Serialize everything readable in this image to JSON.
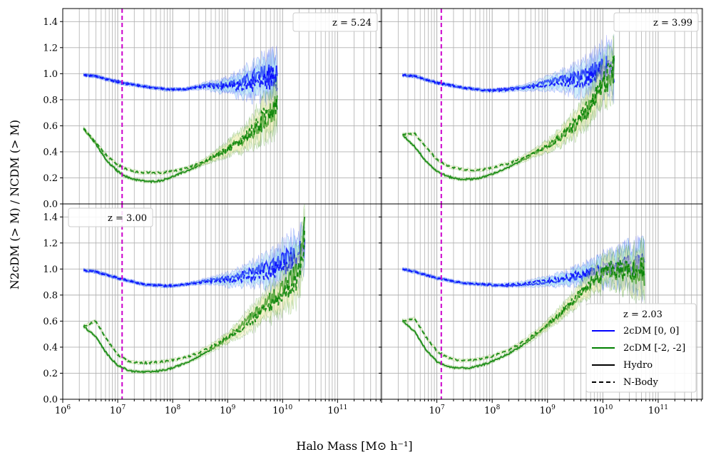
{
  "chart_data": {
    "type": "line",
    "xlabel": "Halo Mass [M⊙ h⁻¹]",
    "ylabel": "N2cDM (> M) / NCDM (> M)",
    "x_scale": "log",
    "xlim_exp": [
      6,
      11.8
    ],
    "ylim": [
      0,
      1.5
    ],
    "x_tick_exponents": [
      6,
      7,
      8,
      9,
      10,
      11
    ],
    "y_ticks": [
      "0.0",
      "0.2",
      "0.4",
      "0.6",
      "0.8",
      "1.0",
      "1.2",
      "1.4"
    ],
    "vline_exp": 7.08,
    "grid": true,
    "legend": {
      "entries": [
        {
          "label": "2cDM [0, 0]",
          "color": "#0000ff",
          "style": "solid"
        },
        {
          "label": "2cDM [-2, -2]",
          "color": "#008000",
          "style": "solid"
        },
        {
          "label": "Hydro",
          "color": "#000000",
          "style": "solid"
        },
        {
          "label": "N-Body",
          "color": "#000000",
          "style": "dashed"
        }
      ]
    },
    "colors": {
      "blue": "#0000ff",
      "green": "#008000",
      "vline": "#cc00cc",
      "blue_band": "#7fd0f0",
      "green_band": "#e8e79a"
    },
    "panels": [
      {
        "z_label": "z = 5.24",
        "x_range": [
          6.38,
          9.9
        ],
        "series": [
          {
            "name": "2cDM [0, 0]",
            "kind": "Hydro",
            "color": "blue",
            "dash": false,
            "x": [
              6.38,
              6.6,
              7.0,
              7.5,
              7.9,
              8.2,
              8.6,
              9.0,
              9.3,
              9.5,
              9.7,
              9.8,
              9.9
            ],
            "y": [
              0.99,
              0.98,
              0.94,
              0.9,
              0.88,
              0.88,
              0.91,
              0.92,
              0.94,
              0.97,
              0.99,
              1.02,
              0.96
            ]
          },
          {
            "name": "2cDM [0, 0]",
            "kind": "N-Body",
            "color": "blue",
            "dash": true,
            "x": [
              6.38,
              6.6,
              7.0,
              7.5,
              7.9,
              8.2,
              8.6,
              9.0,
              9.3,
              9.5,
              9.7,
              9.8,
              9.9
            ],
            "y": [
              0.99,
              0.98,
              0.93,
              0.9,
              0.88,
              0.88,
              0.9,
              0.9,
              0.91,
              0.93,
              0.95,
              0.98,
              0.95
            ]
          },
          {
            "name": "2cDM [-2, -2]",
            "kind": "Hydro",
            "color": "green",
            "dash": false,
            "x": [
              6.38,
              6.6,
              6.8,
              7.0,
              7.2,
              7.4,
              7.6,
              7.8,
              8.0,
              8.3,
              8.6,
              8.9,
              9.2,
              9.5,
              9.7,
              9.85
            ],
            "y": [
              0.58,
              0.46,
              0.33,
              0.25,
              0.2,
              0.18,
              0.17,
              0.18,
              0.21,
              0.26,
              0.32,
              0.4,
              0.47,
              0.56,
              0.65,
              0.74
            ]
          },
          {
            "name": "2cDM [-2, -2]",
            "kind": "N-Body",
            "color": "green",
            "dash": true,
            "x": [
              6.38,
              6.6,
              6.8,
              7.0,
              7.2,
              7.4,
              7.6,
              7.8,
              8.0,
              8.3,
              8.6,
              8.9,
              9.2,
              9.5,
              9.7,
              9.85
            ],
            "y": [
              0.58,
              0.47,
              0.37,
              0.3,
              0.26,
              0.24,
              0.24,
              0.24,
              0.25,
              0.28,
              0.33,
              0.4,
              0.47,
              0.58,
              0.68,
              0.78
            ]
          }
        ]
      },
      {
        "z_label": "z = 3.99",
        "x_range": [
          6.38,
          10.2
        ],
        "series": [
          {
            "name": "2cDM [0, 0]",
            "kind": "Hydro",
            "color": "blue",
            "dash": false,
            "x": [
              6.38,
              6.6,
              7.0,
              7.5,
              7.9,
              8.2,
              8.6,
              9.0,
              9.3,
              9.6,
              9.9,
              10.1,
              10.2
            ],
            "y": [
              0.99,
              0.98,
              0.93,
              0.89,
              0.87,
              0.88,
              0.9,
              0.93,
              0.96,
              0.98,
              1.02,
              1.05,
              1.03
            ]
          },
          {
            "name": "2cDM [0, 0]",
            "kind": "N-Body",
            "color": "blue",
            "dash": true,
            "x": [
              6.38,
              6.6,
              7.0,
              7.5,
              7.9,
              8.2,
              8.6,
              9.0,
              9.3,
              9.6,
              9.9,
              10.1,
              10.2
            ],
            "y": [
              0.99,
              0.98,
              0.93,
              0.89,
              0.87,
              0.87,
              0.89,
              0.91,
              0.93,
              0.95,
              0.99,
              1.02,
              1.01
            ]
          },
          {
            "name": "2cDM [-2, -2]",
            "kind": "Hydro",
            "color": "green",
            "dash": false,
            "x": [
              6.38,
              6.6,
              6.8,
              7.0,
              7.2,
              7.4,
              7.6,
              7.8,
              8.0,
              8.3,
              8.6,
              8.9,
              9.2,
              9.5,
              9.8,
              10.0,
              10.2
            ],
            "y": [
              0.53,
              0.44,
              0.33,
              0.25,
              0.21,
              0.19,
              0.19,
              0.2,
              0.23,
              0.28,
              0.35,
              0.42,
              0.5,
              0.6,
              0.75,
              0.9,
              1.04
            ]
          },
          {
            "name": "2cDM [-2, -2]",
            "kind": "N-Body",
            "color": "green",
            "dash": true,
            "x": [
              6.38,
              6.6,
              6.8,
              7.0,
              7.2,
              7.4,
              7.6,
              7.8,
              8.0,
              8.3,
              8.6,
              8.9,
              9.2,
              9.5,
              9.8,
              10.0,
              10.2
            ],
            "y": [
              0.53,
              0.54,
              0.44,
              0.34,
              0.29,
              0.27,
              0.26,
              0.26,
              0.28,
              0.31,
              0.36,
              0.42,
              0.5,
              0.62,
              0.78,
              0.93,
              1.05
            ]
          }
        ]
      },
      {
        "z_label": "z = 3.00",
        "x_range": [
          6.38,
          10.4
        ],
        "series": [
          {
            "name": "2cDM [0, 0]",
            "kind": "Hydro",
            "color": "blue",
            "dash": false,
            "x": [
              6.38,
              6.6,
              7.0,
              7.5,
              7.9,
              8.2,
              8.6,
              9.0,
              9.3,
              9.6,
              9.9,
              10.1,
              10.3,
              10.4
            ],
            "y": [
              0.99,
              0.98,
              0.93,
              0.88,
              0.87,
              0.88,
              0.91,
              0.93,
              0.96,
              1.0,
              1.04,
              1.08,
              1.1,
              1.2
            ]
          },
          {
            "name": "2cDM [0, 0]",
            "kind": "N-Body",
            "color": "blue",
            "dash": true,
            "x": [
              6.38,
              6.6,
              7.0,
              7.5,
              7.9,
              8.2,
              8.6,
              9.0,
              9.3,
              9.6,
              9.9,
              10.1,
              10.3,
              10.4
            ],
            "y": [
              0.99,
              0.98,
              0.93,
              0.88,
              0.87,
              0.88,
              0.9,
              0.91,
              0.93,
              0.96,
              1.0,
              1.05,
              1.08,
              1.15
            ]
          },
          {
            "name": "2cDM [-2, -2]",
            "kind": "Hydro",
            "color": "green",
            "dash": false,
            "x": [
              6.38,
              6.6,
              6.8,
              7.0,
              7.2,
              7.4,
              7.6,
              7.8,
              8.0,
              8.3,
              8.6,
              8.9,
              9.2,
              9.5,
              9.8,
              10.1,
              10.3,
              10.4
            ],
            "y": [
              0.56,
              0.48,
              0.35,
              0.26,
              0.22,
              0.21,
              0.21,
              0.22,
              0.24,
              0.29,
              0.36,
              0.44,
              0.55,
              0.66,
              0.78,
              0.9,
              0.98,
              1.3
            ]
          },
          {
            "name": "2cDM [-2, -2]",
            "kind": "N-Body",
            "color": "green",
            "dash": true,
            "x": [
              6.38,
              6.6,
              6.8,
              7.0,
              7.2,
              7.4,
              7.6,
              7.8,
              8.0,
              8.3,
              8.6,
              8.9,
              9.2,
              9.5,
              9.8,
              10.1,
              10.3,
              10.4
            ],
            "y": [
              0.56,
              0.6,
              0.46,
              0.34,
              0.29,
              0.28,
              0.28,
              0.29,
              0.3,
              0.33,
              0.38,
              0.45,
              0.53,
              0.62,
              0.73,
              0.85,
              0.95,
              1.25
            ]
          }
        ]
      },
      {
        "z_label": "z = 2.03",
        "x_range": [
          6.38,
          10.75
        ],
        "series": [
          {
            "name": "2cDM [0, 0]",
            "kind": "Hydro",
            "color": "blue",
            "dash": false,
            "x": [
              6.38,
              6.6,
              7.0,
              7.5,
              7.9,
              8.2,
              8.6,
              9.0,
              9.3,
              9.6,
              9.9,
              10.2,
              10.5,
              10.75
            ],
            "y": [
              1.0,
              0.98,
              0.93,
              0.89,
              0.88,
              0.87,
              0.88,
              0.9,
              0.92,
              0.95,
              0.98,
              1.02,
              1.05,
              1.0
            ]
          },
          {
            "name": "2cDM [0, 0]",
            "kind": "N-Body",
            "color": "blue",
            "dash": true,
            "x": [
              6.38,
              6.6,
              7.0,
              7.5,
              7.9,
              8.2,
              8.6,
              9.0,
              9.3,
              9.6,
              9.9,
              10.2,
              10.5,
              10.75
            ],
            "y": [
              1.0,
              0.98,
              0.93,
              0.89,
              0.88,
              0.88,
              0.89,
              0.91,
              0.93,
              0.96,
              0.99,
              1.0,
              1.03,
              0.99
            ]
          },
          {
            "name": "2cDM [-2, -2]",
            "kind": "Hydro",
            "color": "green",
            "dash": false,
            "x": [
              6.38,
              6.6,
              6.8,
              7.0,
              7.2,
              7.4,
              7.6,
              7.8,
              8.0,
              8.3,
              8.6,
              8.9,
              9.2,
              9.5,
              9.8,
              10.1
            ],
            "y": [
              0.6,
              0.52,
              0.38,
              0.29,
              0.25,
              0.24,
              0.24,
              0.26,
              0.29,
              0.35,
              0.43,
              0.53,
              0.64,
              0.76,
              0.88,
              0.98
            ]
          },
          {
            "name": "2cDM [-2, -2]",
            "kind": "N-Body",
            "color": "green",
            "dash": true,
            "x": [
              6.38,
              6.6,
              6.8,
              7.0,
              7.2,
              7.4,
              7.6,
              7.8,
              8.0,
              8.3,
              8.6,
              8.9,
              9.2,
              9.5,
              9.8,
              10.1
            ],
            "y": [
              0.6,
              0.62,
              0.48,
              0.37,
              0.32,
              0.3,
              0.3,
              0.31,
              0.33,
              0.38,
              0.45,
              0.54,
              0.65,
              0.78,
              0.9,
              1.0
            ]
          }
        ]
      }
    ]
  }
}
